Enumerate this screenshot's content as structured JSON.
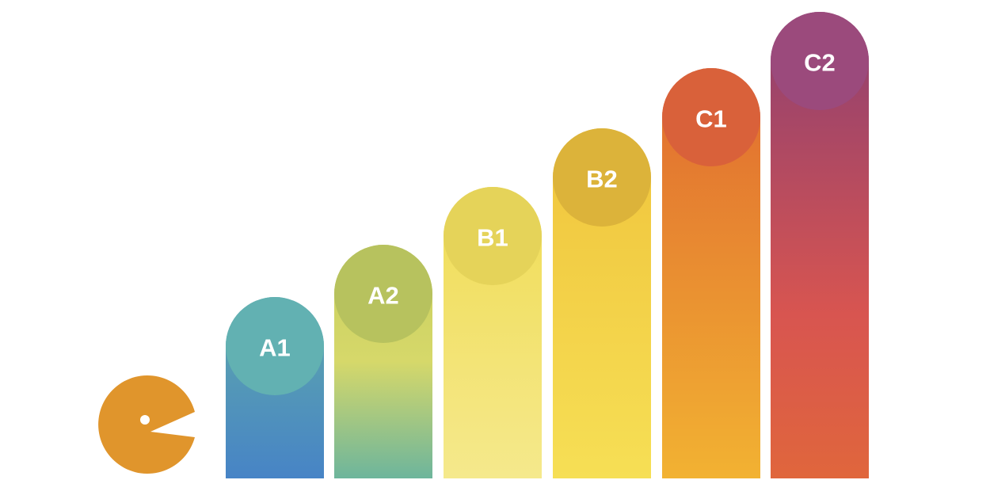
{
  "levels": [
    {
      "label": "A1"
    },
    {
      "label": "A2"
    },
    {
      "label": "B1"
    },
    {
      "label": "B2"
    },
    {
      "label": "C1"
    },
    {
      "label": "C2"
    }
  ]
}
